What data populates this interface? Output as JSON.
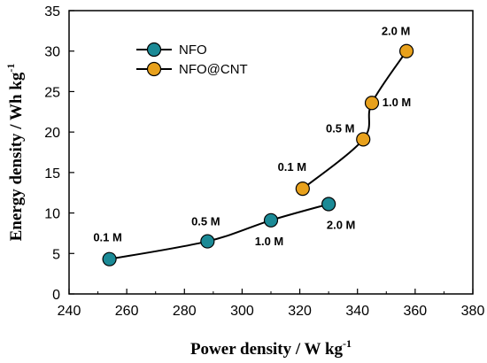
{
  "chart_data": {
    "type": "line",
    "xlabel": "Power density / W kg",
    "xlabel_sup": "-1",
    "ylabel": "Energy density / Wh kg",
    "ylabel_sup": "-1",
    "xlim": [
      240,
      380
    ],
    "ylim": [
      0,
      35
    ],
    "xticks": [
      "240",
      "260",
      "280",
      "300",
      "320",
      "340",
      "360",
      "380"
    ],
    "yticks": [
      "0",
      "5",
      "10",
      "15",
      "20",
      "25",
      "30",
      "35"
    ],
    "grid": false,
    "legend_position": "top-left",
    "series": [
      {
        "name": "NFO",
        "color": "#1b8a96",
        "points": [
          {
            "x": 254,
            "y": 4.3,
            "label": "0.1 M"
          },
          {
            "x": 288,
            "y": 6.5,
            "label": "0.5 M"
          },
          {
            "x": 310,
            "y": 9.1,
            "label": "1.0 M"
          },
          {
            "x": 330,
            "y": 11.1,
            "label": "2.0 M"
          }
        ]
      },
      {
        "name": "NFO@CNT",
        "color": "#e8a11c",
        "points": [
          {
            "x": 321,
            "y": 13.0,
            "label": "0.1 M"
          },
          {
            "x": 342,
            "y": 19.1,
            "label": "0.5 M"
          },
          {
            "x": 345,
            "y": 23.6,
            "label": "1.0 M"
          },
          {
            "x": 357,
            "y": 30.0,
            "label": "2.0 M"
          }
        ]
      }
    ]
  }
}
